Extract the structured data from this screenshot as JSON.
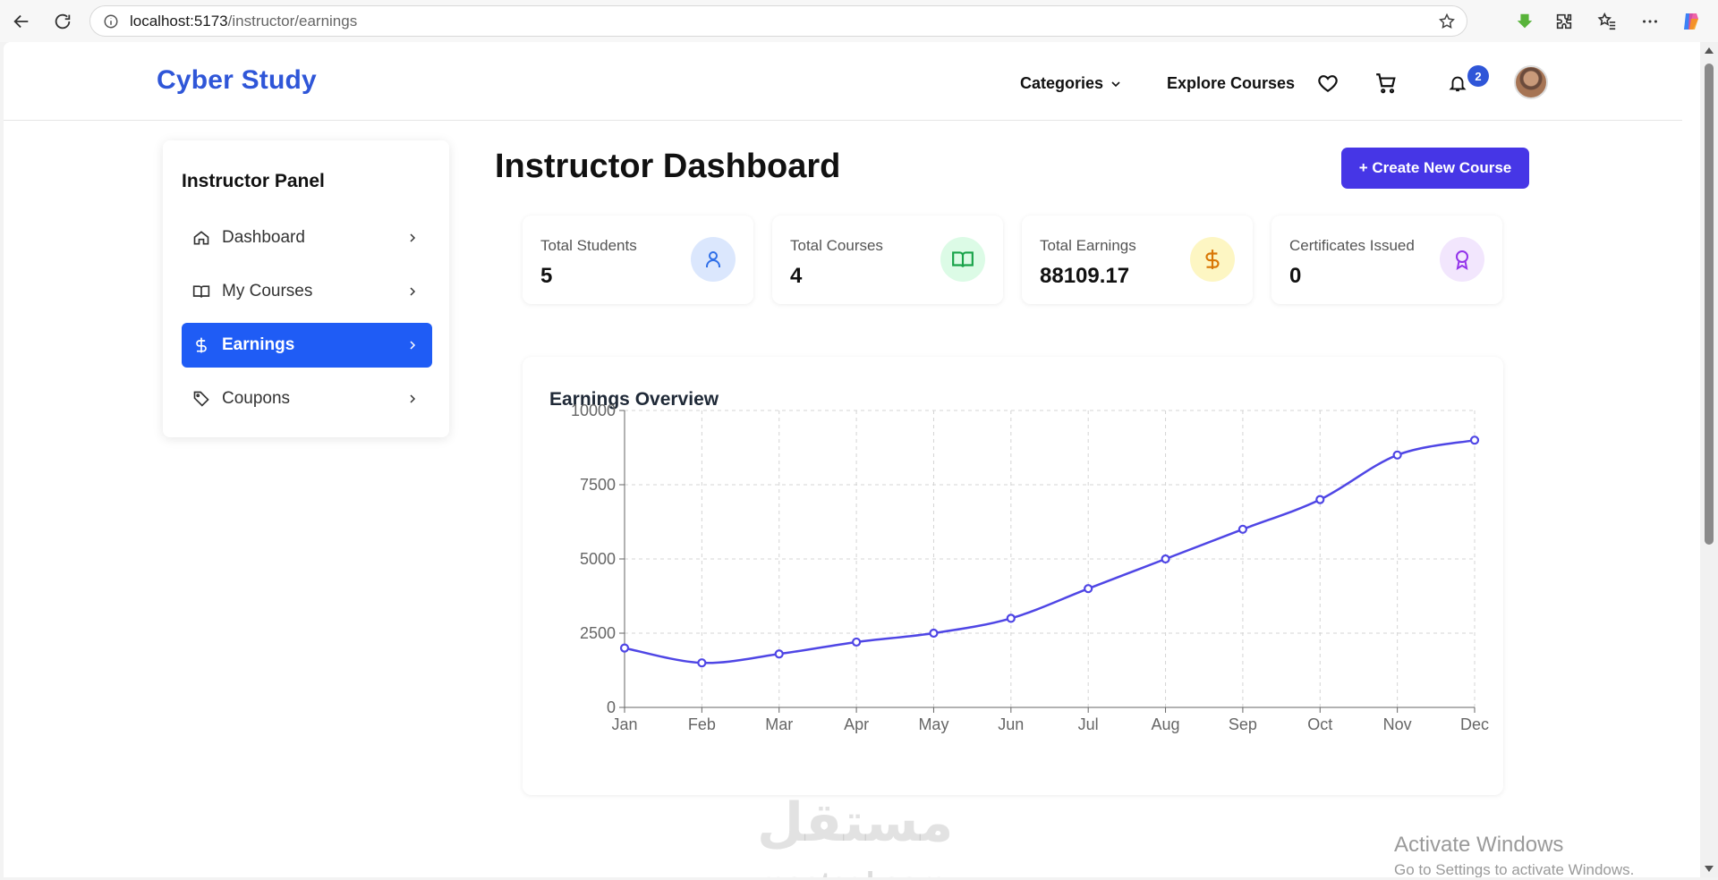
{
  "browser": {
    "url_host": "localhost:5173",
    "url_path": "/instructor/earnings"
  },
  "header": {
    "logo": "Cyber Study",
    "categories_label": "Categories",
    "explore_label": "Explore Courses",
    "notification_count": "2"
  },
  "sidebar": {
    "title": "Instructor Panel",
    "items": [
      {
        "label": "Dashboard",
        "icon": "home-icon"
      },
      {
        "label": "My Courses",
        "icon": "book-open-icon"
      },
      {
        "label": "Earnings",
        "icon": "dollar-icon",
        "active": true
      },
      {
        "label": "Coupons",
        "icon": "tag-icon"
      }
    ]
  },
  "main": {
    "title": "Instructor Dashboard",
    "create_button": "+ Create New Course"
  },
  "stats": [
    {
      "label": "Total Students",
      "value": "5",
      "icon": "user-icon",
      "bg": "#dbe7fd",
      "color": "#2f6fe8"
    },
    {
      "label": "Total Courses",
      "value": "4",
      "icon": "book-open-icon",
      "bg": "#dcfbe6",
      "color": "#19a34a"
    },
    {
      "label": "Total Earnings",
      "value": "88109.17",
      "icon": "dollar-icon",
      "bg": "#fdf6c3",
      "color": "#d97706"
    },
    {
      "label": "Certificates Issued",
      "value": "0",
      "icon": "award-icon",
      "bg": "#f2e6fd",
      "color": "#9333ea"
    }
  ],
  "chart_data": {
    "type": "line",
    "title": "Earnings Overview",
    "categories": [
      "Jan",
      "Feb",
      "Mar",
      "Apr",
      "May",
      "Jun",
      "Jul",
      "Aug",
      "Sep",
      "Oct",
      "Nov",
      "Dec"
    ],
    "values": [
      2000,
      1500,
      1800,
      2200,
      2500,
      3000,
      4000,
      5000,
      6000,
      7000,
      8500,
      9000
    ],
    "ylim": [
      0,
      10000
    ],
    "yticks": [
      0,
      2500,
      5000,
      7500,
      10000
    ],
    "grid": true,
    "line_color": "#4f46e5"
  },
  "watermark": {
    "arabic": "مستقل",
    "site": "mostaql.com"
  },
  "activation": {
    "title": "Activate Windows",
    "subtitle": "Go to Settings to activate Windows."
  }
}
